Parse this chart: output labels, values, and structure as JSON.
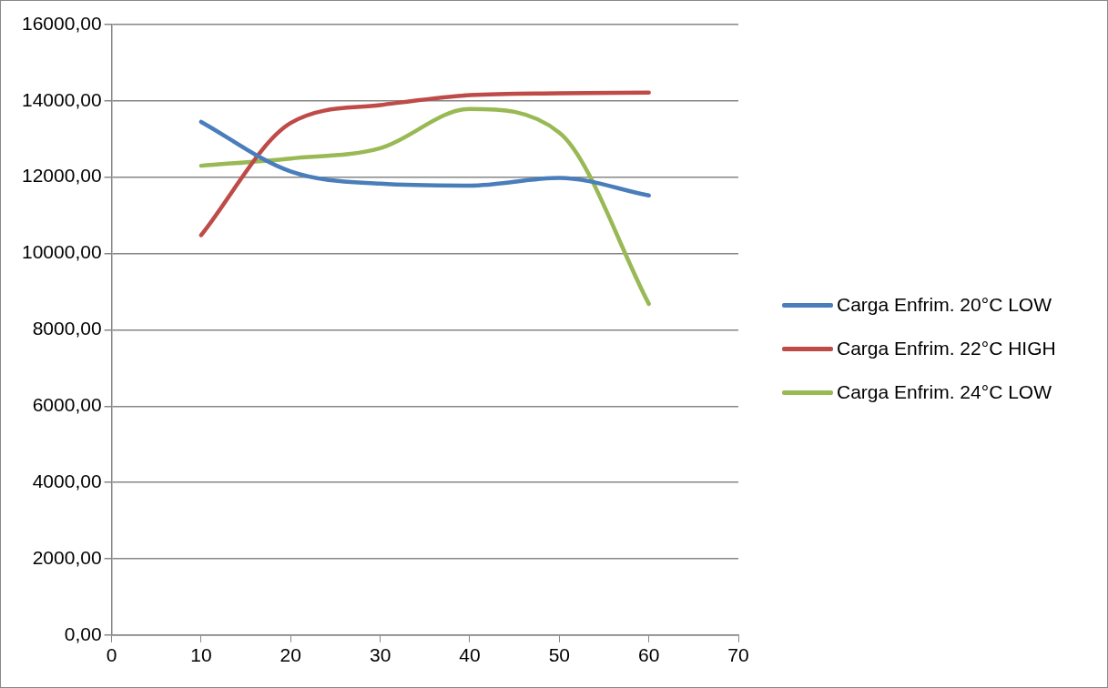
{
  "chart_data": {
    "type": "line",
    "x": [
      10,
      20,
      30,
      40,
      50,
      60
    ],
    "series": [
      {
        "name": "Carga Enfrim. 20°C LOW",
        "color": "#4a7ebb",
        "values": [
          13450,
          12150,
          11830,
          11780,
          11980,
          11520
        ]
      },
      {
        "name": "Carga Enfrim. 22°C HIGH",
        "color": "#be4b48",
        "values": [
          10480,
          13420,
          13890,
          14150,
          14200,
          14220
        ]
      },
      {
        "name": "Carga Enfrim. 24°C LOW",
        "color": "#98b954",
        "values": [
          12300,
          12490,
          12760,
          13790,
          13170,
          8680
        ]
      }
    ],
    "xlim": [
      0,
      70
    ],
    "xticks": [
      0,
      10,
      20,
      30,
      40,
      50,
      60,
      70
    ],
    "ylim": [
      0,
      16000
    ],
    "yticks": [
      {
        "value": 0,
        "label": "0,00"
      },
      {
        "value": 2000,
        "label": "2000,00"
      },
      {
        "value": 4000,
        "label": "4000,00"
      },
      {
        "value": 6000,
        "label": "6000,00"
      },
      {
        "value": 8000,
        "label": "8000,00"
      },
      {
        "value": 10000,
        "label": "10000,00"
      },
      {
        "value": 12000,
        "label": "12000,00"
      },
      {
        "value": 14000,
        "label": "14000,00"
      },
      {
        "value": 16000,
        "label": "16000,00"
      }
    ],
    "grid": "y",
    "legend": "right",
    "marker": "none",
    "line_style": "solid"
  }
}
